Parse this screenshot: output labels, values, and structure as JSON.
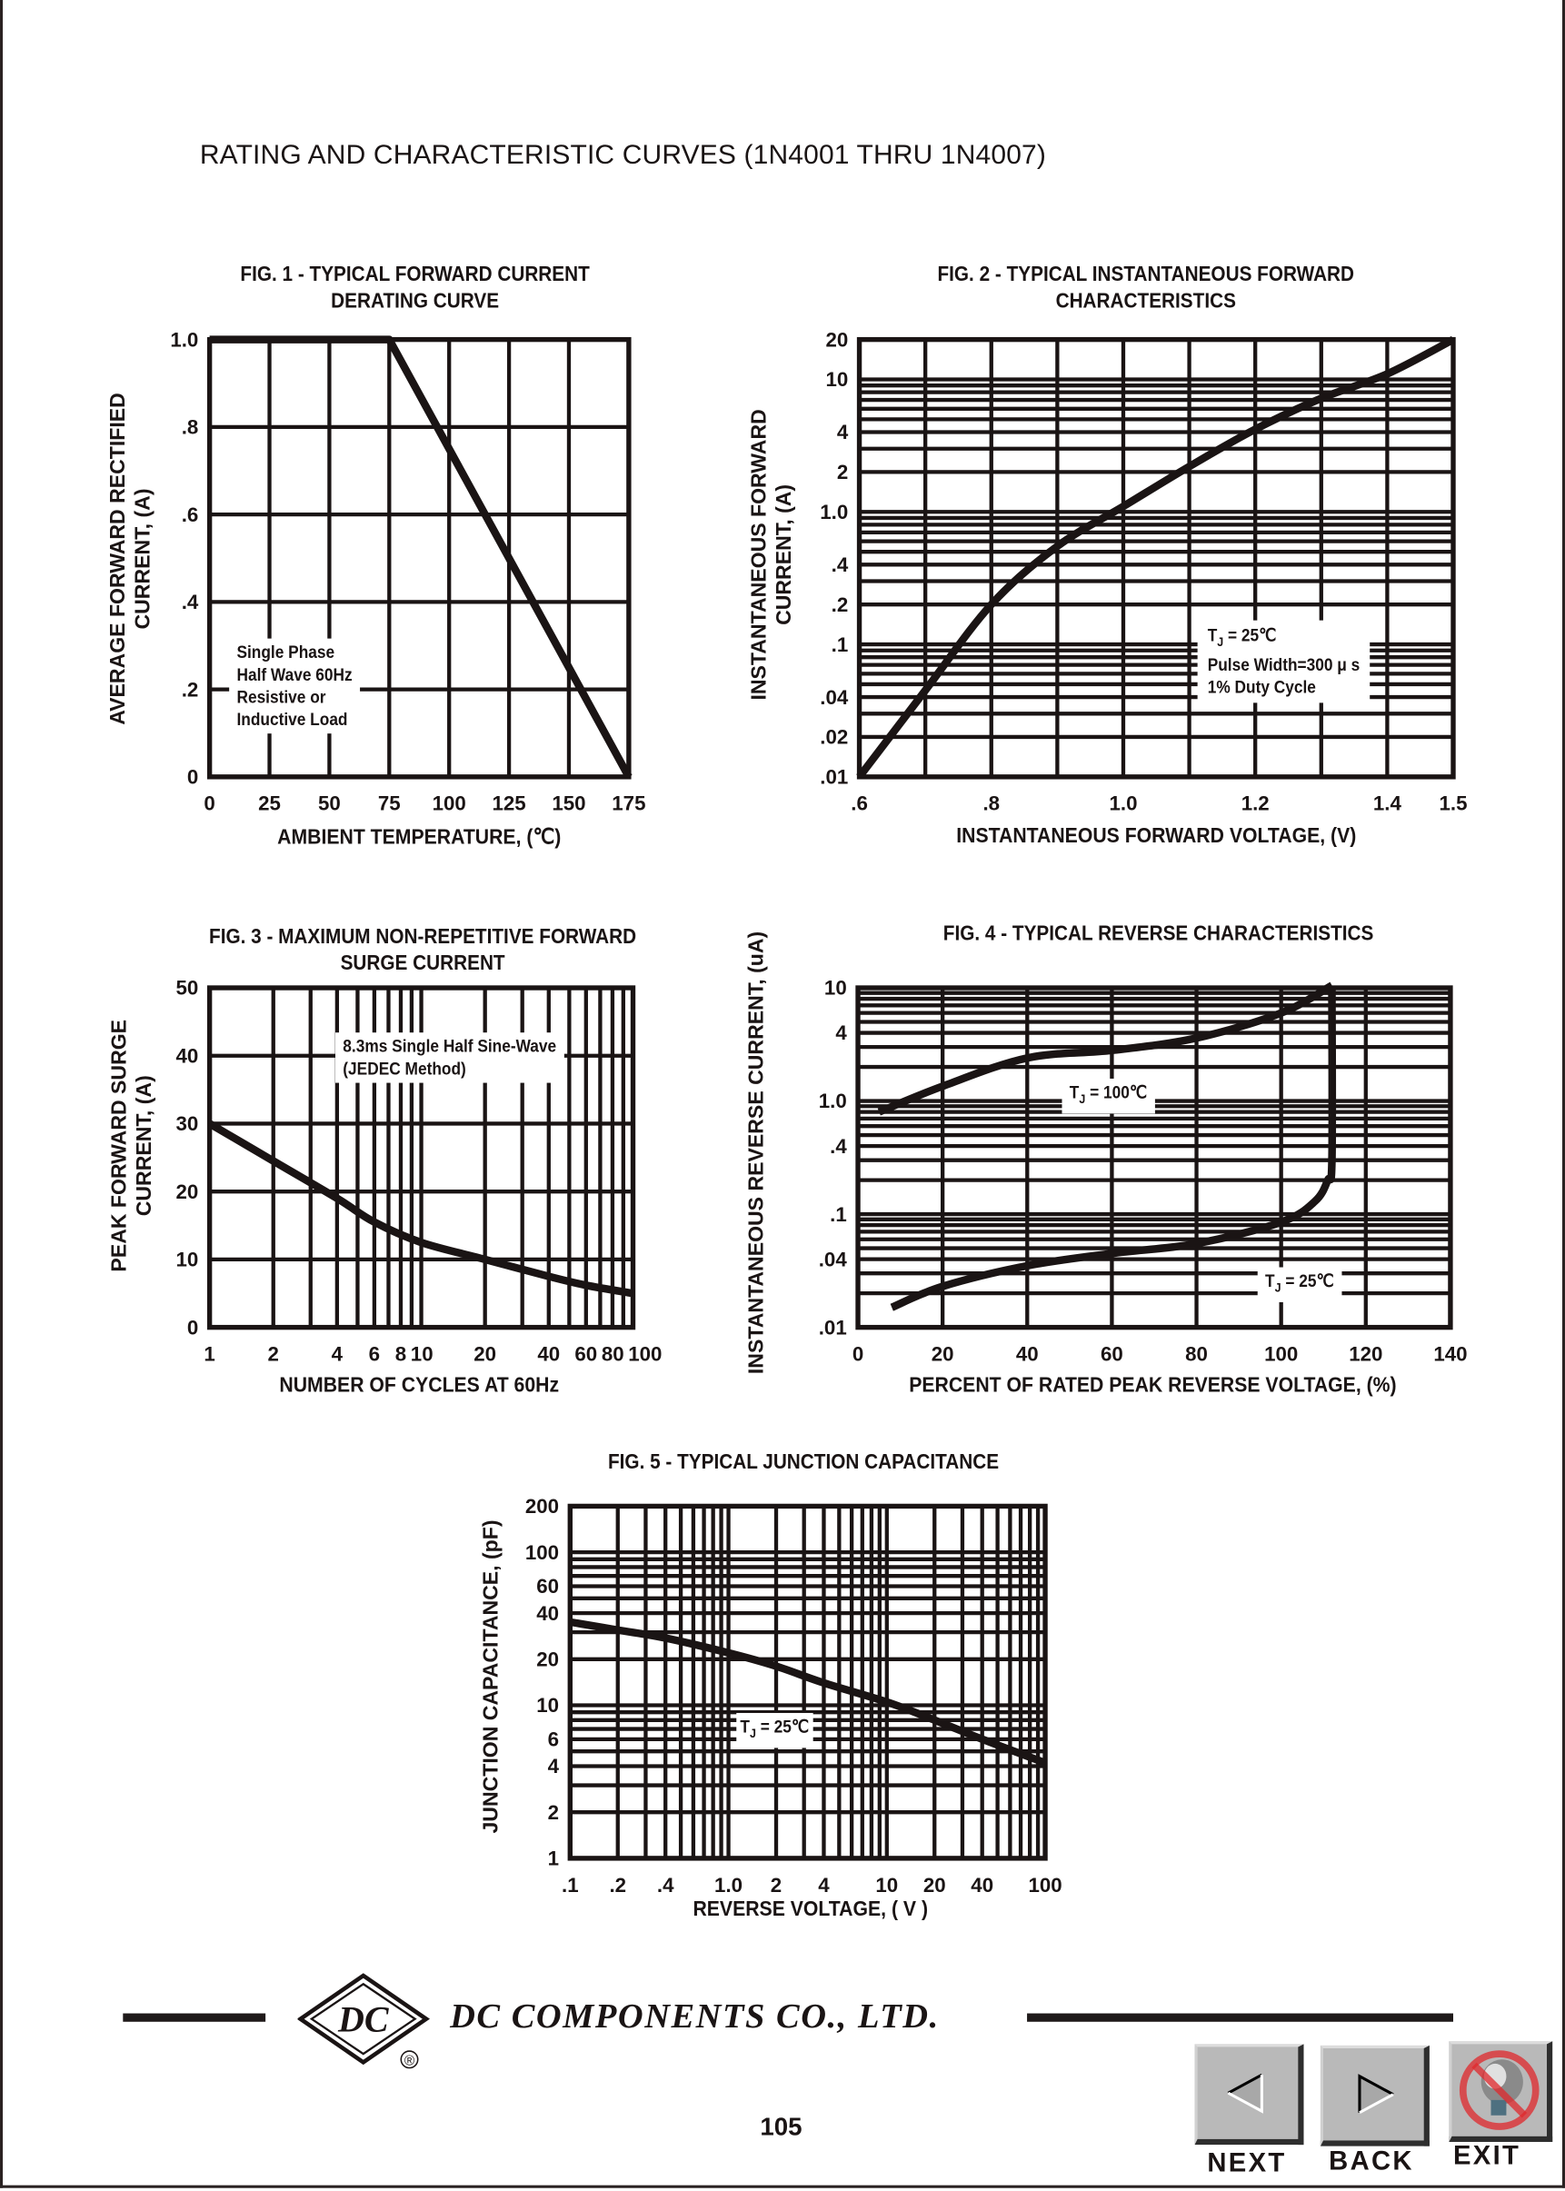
{
  "header": {
    "title": "RATING AND CHARACTERISTIC CURVES (1N4001 THRU 1N4007)"
  },
  "chart_data": [
    {
      "id": "fig1",
      "type": "line",
      "title": [
        "FIG. 1 - TYPICAL FORWARD CURRENT",
        "DERATING CURVE"
      ],
      "xlabel": "AMBIENT TEMPERATURE, (℃)",
      "ylabel": [
        "AVERAGE FORWARD RECTIFIED",
        "CURRENT, (A)"
      ],
      "xscale": "linear",
      "yscale": "linear",
      "xlim": [
        0,
        175
      ],
      "ylim": [
        0,
        1.0
      ],
      "x_ticks": [
        {
          "v": 0,
          "t": "0"
        },
        {
          "v": 25,
          "t": "25"
        },
        {
          "v": 50,
          "t": "50"
        },
        {
          "v": 75,
          "t": "75"
        },
        {
          "v": 100,
          "t": "100"
        },
        {
          "v": 125,
          "t": "125"
        },
        {
          "v": 150,
          "t": "150"
        },
        {
          "v": 175,
          "t": "175"
        }
      ],
      "y_ticks": [
        {
          "v": 0,
          "t": "0"
        },
        {
          "v": 0.2,
          "t": ".2"
        },
        {
          "v": 0.4,
          "t": ".4"
        },
        {
          "v": 0.6,
          "t": ".6"
        },
        {
          "v": 0.8,
          "t": ".8"
        },
        {
          "v": 1.0,
          "t": "1.0"
        }
      ],
      "x_grid": [
        25,
        50,
        75,
        100,
        125,
        150
      ],
      "y_grid": [
        0.2,
        0.4,
        0.6,
        0.8
      ],
      "grid": true,
      "series": [
        {
          "x": [
            0,
            75,
            175
          ],
          "y": [
            1.0,
            1.0,
            0
          ]
        }
      ],
      "annotation": [
        "Single Phase",
        "Half Wave 60Hz",
        "Resistive or",
        "Inductive Load"
      ]
    },
    {
      "id": "fig2",
      "type": "line",
      "title": [
        "FIG. 2 - TYPICAL INSTANTANEOUS FORWARD",
        "CHARACTERISTICS"
      ],
      "xlabel": "INSTANTANEOUS FORWARD VOLTAGE, (V)",
      "ylabel": [
        "INSTANTANEOUS FORWARD",
        "CURRENT, (A)"
      ],
      "xscale": "linear",
      "yscale": "log",
      "xlim": [
        0.6,
        1.5
      ],
      "ylim": [
        0.01,
        20
      ],
      "x_ticks": [
        {
          "v": 0.6,
          "t": ".6"
        },
        {
          "v": 0.8,
          "t": ".8"
        },
        {
          "v": 1.0,
          "t": "1.0"
        },
        {
          "v": 1.2,
          "t": "1.2"
        },
        {
          "v": 1.4,
          "t": "1.4"
        },
        {
          "v": 1.5,
          "t": "1.5"
        }
      ],
      "y_ticks": [
        {
          "v": 20,
          "t": "20"
        },
        {
          "v": 10,
          "t": "10"
        },
        {
          "v": 4,
          "t": "4"
        },
        {
          "v": 2,
          "t": "2"
        },
        {
          "v": 1,
          "t": "1.0"
        },
        {
          "v": 0.4,
          "t": ".4"
        },
        {
          "v": 0.2,
          "t": ".2"
        },
        {
          "v": 0.1,
          "t": ".1"
        },
        {
          "v": 0.04,
          "t": ".04"
        },
        {
          "v": 0.02,
          "t": ".02"
        },
        {
          "v": 0.01,
          "t": ".01"
        }
      ],
      "x_grid": [
        0.7,
        0.8,
        0.9,
        1.0,
        1.1,
        1.2,
        1.3,
        1.4
      ],
      "y_grid": [
        0.02,
        0.03,
        0.04,
        0.05,
        0.06,
        0.07,
        0.08,
        0.09,
        0.1,
        0.2,
        0.3,
        0.4,
        0.5,
        0.6,
        0.7,
        0.8,
        0.9,
        1,
        2,
        3,
        4,
        5,
        6,
        7,
        8,
        9,
        10
      ],
      "grid": true,
      "series": [
        {
          "x": [
            0.6,
            0.7,
            0.8,
            0.9,
            1.0,
            1.1,
            1.2,
            1.3,
            1.4,
            1.5
          ],
          "y": [
            0.01,
            0.045,
            0.2,
            0.55,
            1.1,
            2.2,
            4.2,
            7.2,
            11,
            20
          ]
        }
      ],
      "annotation": {
        "sym": "T",
        "sub": "J",
        "rest": " = 25℃",
        "lines": [
          "Pulse Width=300 μ s",
          "1% Duty Cycle"
        ]
      }
    },
    {
      "id": "fig3",
      "type": "line",
      "title": [
        "FIG. 3 - MAXIMUM NON-REPETITIVE FORWARD",
        "SURGE CURRENT"
      ],
      "xlabel": "NUMBER OF CYCLES AT 60Hz",
      "ylabel": [
        "PEAK FORWARD SURGE",
        "CURRENT, (A)"
      ],
      "xscale": "log",
      "yscale": "linear",
      "xlim": [
        1,
        100
      ],
      "ylim": [
        0,
        50
      ],
      "x_ticks": [
        {
          "v": 1,
          "t": "1"
        },
        {
          "v": 2,
          "t": "2"
        },
        {
          "v": 4,
          "t": "4"
        },
        {
          "v": 6,
          "t": "6"
        },
        {
          "v": 8,
          "t": "8"
        },
        {
          "v": 10,
          "t": "10"
        },
        {
          "v": 20,
          "t": "20"
        },
        {
          "v": 40,
          "t": "40"
        },
        {
          "v": 60,
          "t": "60"
        },
        {
          "v": 80,
          "t": "80"
        },
        {
          "v": 100,
          "t": "100"
        }
      ],
      "y_ticks": [
        {
          "v": 0,
          "t": "0"
        },
        {
          "v": 10,
          "t": "10"
        },
        {
          "v": 20,
          "t": "20"
        },
        {
          "v": 30,
          "t": "30"
        },
        {
          "v": 40,
          "t": "40"
        },
        {
          "v": 50,
          "t": "50"
        }
      ],
      "x_grid": [
        2,
        3,
        4,
        5,
        6,
        7,
        8,
        9,
        10,
        20,
        30,
        40,
        50,
        60,
        70,
        80,
        90
      ],
      "y_grid": [
        10,
        20,
        30,
        40
      ],
      "grid": true,
      "series": [
        {
          "x": [
            1,
            2,
            4,
            6,
            10,
            20,
            40,
            60,
            100
          ],
          "y": [
            30,
            24.5,
            19,
            15.5,
            12.5,
            10,
            7.5,
            6.2,
            5
          ]
        }
      ],
      "annotation": [
        "8.3ms Single Half Sine-Wave",
        "(JEDEC Method)"
      ]
    },
    {
      "id": "fig4",
      "type": "line",
      "title": [
        "FIG. 4 - TYPICAL REVERSE CHARACTERISTICS"
      ],
      "xlabel": "PERCENT OF RATED PEAK REVERSE VOLTAGE, (%)",
      "ylabel": [
        "INSTANTANEOUS REVERSE CURRENT, (uA)"
      ],
      "xscale": "linear",
      "yscale": "log",
      "xlim": [
        0,
        140
      ],
      "ylim": [
        0.01,
        10
      ],
      "x_ticks": [
        {
          "v": 0,
          "t": "0"
        },
        {
          "v": 20,
          "t": "20"
        },
        {
          "v": 40,
          "t": "40"
        },
        {
          "v": 60,
          "t": "60"
        },
        {
          "v": 80,
          "t": "80"
        },
        {
          "v": 100,
          "t": "100"
        },
        {
          "v": 120,
          "t": "120"
        },
        {
          "v": 140,
          "t": "140"
        }
      ],
      "y_ticks": [
        {
          "v": 10,
          "t": "10"
        },
        {
          "v": 4,
          "t": "4"
        },
        {
          "v": 1,
          "t": "1.0"
        },
        {
          "v": 0.4,
          "t": ".4"
        },
        {
          "v": 0.1,
          "t": ".1"
        },
        {
          "v": 0.04,
          "t": ".04"
        },
        {
          "v": 0.01,
          "t": ".01"
        }
      ],
      "x_grid": [
        20,
        40,
        60,
        80,
        100,
        120
      ],
      "y_grid": [
        0.02,
        0.03,
        0.04,
        0.05,
        0.06,
        0.07,
        0.08,
        0.09,
        0.1,
        0.2,
        0.3,
        0.4,
        0.5,
        0.6,
        0.7,
        0.8,
        0.9,
        1,
        2,
        3,
        4,
        5,
        6,
        7,
        8,
        9
      ],
      "grid": true,
      "series": [
        {
          "name": "TJ = 100℃",
          "x": [
            5,
            20,
            40,
            60,
            80,
            100,
            112
          ],
          "y": [
            0.8,
            1.35,
            2.4,
            2.8,
            3.6,
            6,
            10.5
          ]
        },
        {
          "name": "TJ = 25℃",
          "x": [
            8,
            20,
            40,
            60,
            80,
            100,
            108,
            111,
            112,
            112
          ],
          "y": [
            0.015,
            0.023,
            0.035,
            0.045,
            0.055,
            0.085,
            0.13,
            0.2,
            0.3,
            10
          ]
        }
      ],
      "labels": [
        {
          "sym": "T",
          "sub": "J",
          "rest": " = 100℃"
        },
        {
          "sym": "T",
          "sub": "J",
          "rest": " = 25℃"
        }
      ]
    },
    {
      "id": "fig5",
      "type": "line",
      "title": [
        "FIG. 5 - TYPICAL JUNCTION CAPACITANCE"
      ],
      "xlabel": "REVERSE VOLTAGE, ( V )",
      "ylabel": [
        "JUNCTION CAPACITANCE, (pF)"
      ],
      "xscale": "log",
      "yscale": "log",
      "xlim": [
        0.1,
        100
      ],
      "ylim": [
        1,
        200
      ],
      "x_ticks": [
        {
          "v": 0.1,
          "t": ".1"
        },
        {
          "v": 0.2,
          "t": ".2"
        },
        {
          "v": 0.4,
          "t": ".4"
        },
        {
          "v": 1,
          "t": "1.0"
        },
        {
          "v": 2,
          "t": "2"
        },
        {
          "v": 4,
          "t": "4"
        },
        {
          "v": 10,
          "t": "10"
        },
        {
          "v": 20,
          "t": "20"
        },
        {
          "v": 40,
          "t": "40"
        },
        {
          "v": 100,
          "t": "100"
        }
      ],
      "y_ticks": [
        {
          "v": 200,
          "t": "200"
        },
        {
          "v": 100,
          "t": "100"
        },
        {
          "v": 60,
          "t": "60"
        },
        {
          "v": 40,
          "t": "40"
        },
        {
          "v": 20,
          "t": "20"
        },
        {
          "v": 10,
          "t": "10"
        },
        {
          "v": 6,
          "t": "6"
        },
        {
          "v": 4,
          "t": "4"
        },
        {
          "v": 2,
          "t": "2"
        },
        {
          "v": 1,
          "t": "1"
        }
      ],
      "x_grid": [
        0.2,
        0.3,
        0.4,
        0.5,
        0.6,
        0.7,
        0.8,
        0.9,
        1,
        2,
        3,
        4,
        5,
        6,
        7,
        8,
        9,
        10,
        20,
        30,
        40,
        50,
        60,
        70,
        80,
        90
      ],
      "y_grid": [
        2,
        3,
        4,
        5,
        6,
        7,
        8,
        9,
        10,
        20,
        30,
        40,
        50,
        60,
        70,
        80,
        90,
        100
      ],
      "grid": true,
      "series": [
        {
          "name": "TJ = 25℃",
          "x": [
            0.1,
            0.2,
            0.4,
            1,
            2,
            4,
            10,
            20,
            40,
            100
          ],
          "y": [
            35,
            31,
            27.5,
            22,
            18,
            14,
            10.5,
            8,
            6,
            4.2
          ]
        }
      ],
      "labels": [
        {
          "sym": "T",
          "sub": "J",
          "rest": " = 25℃"
        }
      ]
    }
  ],
  "footer": {
    "logo_text": "DC",
    "registered": "®",
    "company": "DC COMPONENTS CO., LTD.",
    "page_number": "105"
  },
  "nav": {
    "next": {
      "label": "NEXT",
      "icon": "left-triangle-icon"
    },
    "back": {
      "label": "BACK",
      "icon": "right-triangle-icon"
    },
    "exit": {
      "label": "EXIT",
      "icon": "no-lightbulb-icon"
    }
  },
  "colors": {
    "ink": "#1a1414",
    "button": "#b9b9b9",
    "prohibit": "#e0282c"
  }
}
